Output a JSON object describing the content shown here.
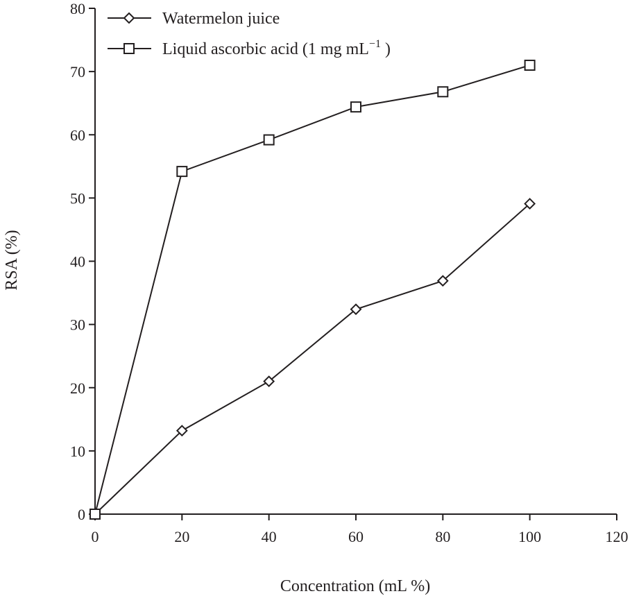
{
  "chart_data": {
    "type": "line",
    "title": "",
    "xlabel": "Concentration (mL %)",
    "ylabel": "RSA (%)",
    "xlim": [
      0,
      120
    ],
    "ylim": [
      0,
      80
    ],
    "xticks": [
      0,
      20,
      40,
      60,
      80,
      100,
      120
    ],
    "yticks": [
      0,
      10,
      20,
      30,
      40,
      50,
      60,
      70,
      80
    ],
    "grid": false,
    "legend_position": "top-left",
    "colors": {
      "line": "#231f20",
      "marker_fill": "#ffffff"
    },
    "series": [
      {
        "name": "Watermelon juice",
        "marker": "diamond",
        "x": [
          0,
          20,
          40,
          60,
          80,
          100
        ],
        "y": [
          0,
          13.2,
          21.0,
          32.4,
          36.9,
          49.1
        ]
      },
      {
        "name": "Liquid ascorbic acid (1 mg mL",
        "name_sup": "−1",
        "name_suffix": " )",
        "marker": "square",
        "x": [
          0,
          20,
          40,
          60,
          80,
          100
        ],
        "y": [
          0,
          54.2,
          59.2,
          64.4,
          66.8,
          71.0
        ]
      }
    ]
  }
}
